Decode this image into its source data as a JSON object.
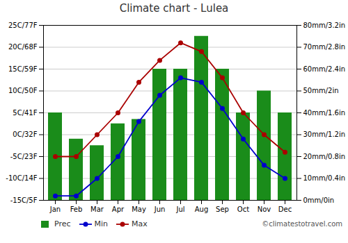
{
  "chart_data": {
    "type": "bar",
    "title": "Climate chart - Lulea",
    "categories": [
      "Jan",
      "Feb",
      "Mar",
      "Apr",
      "May",
      "Jun",
      "Jul",
      "Aug",
      "Sep",
      "Oct",
      "Nov",
      "Dec"
    ],
    "series": [
      {
        "name": "Prec",
        "type": "bar",
        "axis": "y2",
        "color": "#1a8c1a",
        "values": [
          40,
          28,
          25,
          35,
          37,
          60,
          60,
          75,
          60,
          40,
          50,
          40
        ]
      },
      {
        "name": "Min",
        "type": "line",
        "marker": "circle",
        "color": "#0000cc",
        "values": [
          -14,
          -14,
          -10,
          -5,
          3,
          9,
          13,
          12,
          6,
          -1,
          -7,
          -10
        ]
      },
      {
        "name": "Max",
        "type": "line",
        "marker": "circle",
        "color": "#aa0000",
        "values": [
          -5,
          -5,
          0,
          5,
          12,
          17,
          21,
          19,
          13,
          5,
          0,
          -4
        ]
      }
    ],
    "ylim": [
      -15,
      25
    ],
    "yticks": [
      {
        "value": -15,
        "label": "-15C/5F"
      },
      {
        "value": -10,
        "label": "-10C/14F"
      },
      {
        "value": -5,
        "label": "-5C/23F"
      },
      {
        "value": 0,
        "label": "0C/32F"
      },
      {
        "value": 5,
        "label": "5C/41F"
      },
      {
        "value": 10,
        "label": "10C/50F"
      },
      {
        "value": 15,
        "label": "15C/59F"
      },
      {
        "value": 20,
        "label": "20C/68F"
      },
      {
        "value": 25,
        "label": "25C/77F"
      }
    ],
    "y2lim": [
      0,
      80
    ],
    "y2ticks": [
      {
        "value": 0,
        "label": "0mm/0in"
      },
      {
        "value": 10,
        "label": "10mm/0.4in"
      },
      {
        "value": 20,
        "label": "20mm/0.8in"
      },
      {
        "value": 30,
        "label": "30mm/1.2in"
      },
      {
        "value": 40,
        "label": "40mm/1.6in"
      },
      {
        "value": 50,
        "label": "50mm/2in"
      },
      {
        "value": 60,
        "label": "60mm/2.4in"
      },
      {
        "value": 70,
        "label": "70mm/2.8in"
      },
      {
        "value": 80,
        "label": "80mm/3.2in"
      }
    ],
    "grid": true,
    "legend": "bottom",
    "annotations": [
      "©climatestotravel.com"
    ]
  }
}
